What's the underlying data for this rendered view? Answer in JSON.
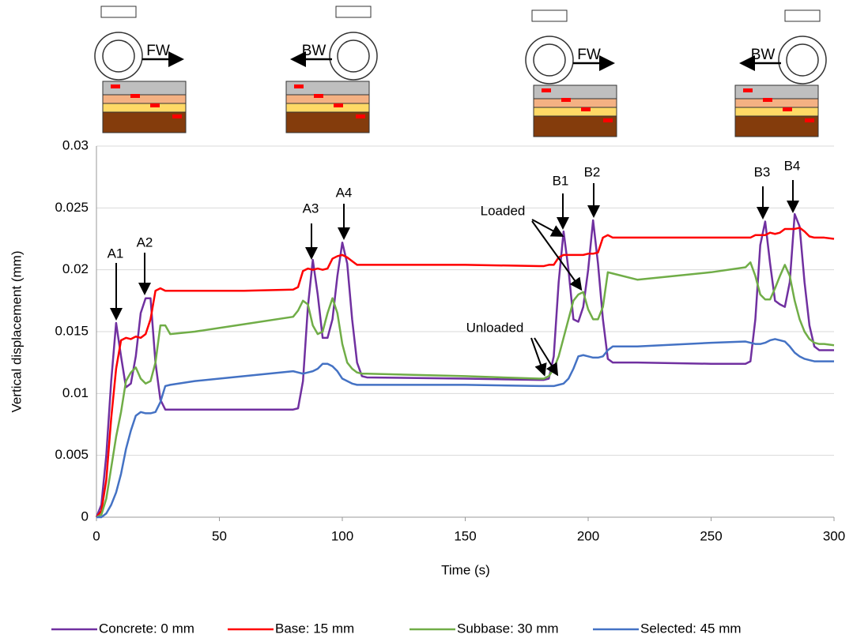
{
  "chart_data": {
    "type": "line",
    "xlabel": "Time (s)",
    "ylabel": "Vertical displacement (mm)",
    "x": [
      0,
      2,
      4,
      6,
      8,
      10,
      12,
      14,
      16,
      18,
      20,
      22,
      24,
      26,
      28,
      30,
      40,
      60,
      80,
      82,
      84,
      86,
      88,
      90,
      92,
      94,
      96,
      98,
      100,
      102,
      104,
      106,
      108,
      110,
      150,
      180,
      182,
      184,
      186,
      188,
      190,
      192,
      194,
      196,
      198,
      200,
      202,
      204,
      206,
      208,
      210,
      220,
      250,
      264,
      266,
      268,
      270,
      272,
      274,
      276,
      278,
      280,
      282,
      284,
      286,
      288,
      290,
      292,
      294,
      296,
      300
    ],
    "series": [
      {
        "name": "Concrete: 0 mm",
        "color": "#7030a0",
        "values": [
          0,
          0.001,
          0.005,
          0.011,
          0.0157,
          0.013,
          0.0105,
          0.0108,
          0.013,
          0.0165,
          0.0177,
          0.0177,
          0.0125,
          0.0095,
          0.0087,
          0.0087,
          0.0087,
          0.0087,
          0.0087,
          0.0088,
          0.011,
          0.017,
          0.0208,
          0.018,
          0.0145,
          0.0145,
          0.016,
          0.0195,
          0.0222,
          0.0205,
          0.016,
          0.0125,
          0.0114,
          0.0113,
          0.0112,
          0.0111,
          0.0111,
          0.0112,
          0.013,
          0.019,
          0.0231,
          0.02,
          0.016,
          0.0158,
          0.017,
          0.02,
          0.024,
          0.0205,
          0.016,
          0.0128,
          0.0125,
          0.0125,
          0.0124,
          0.0124,
          0.0126,
          0.016,
          0.022,
          0.0239,
          0.0205,
          0.0175,
          0.0172,
          0.017,
          0.019,
          0.0245,
          0.0235,
          0.019,
          0.0155,
          0.0138,
          0.0135,
          0.0135,
          0.0135
        ]
      },
      {
        "name": "Base: 15 mm",
        "color": "#ff0000",
        "values": [
          0,
          0.0005,
          0.003,
          0.008,
          0.012,
          0.0143,
          0.0145,
          0.0144,
          0.0146,
          0.0145,
          0.0148,
          0.016,
          0.0183,
          0.0185,
          0.0183,
          0.0183,
          0.0183,
          0.0183,
          0.0184,
          0.0186,
          0.0199,
          0.0201,
          0.02,
          0.0201,
          0.02,
          0.0201,
          0.0209,
          0.0211,
          0.0212,
          0.021,
          0.0207,
          0.0204,
          0.0204,
          0.0204,
          0.0204,
          0.0203,
          0.0203,
          0.0204,
          0.0204,
          0.021,
          0.0212,
          0.0212,
          0.0212,
          0.0212,
          0.0212,
          0.0213,
          0.0213,
          0.0214,
          0.0226,
          0.0228,
          0.0226,
          0.0226,
          0.0226,
          0.0226,
          0.0226,
          0.0228,
          0.0228,
          0.0228,
          0.023,
          0.0229,
          0.023,
          0.0233,
          0.0233,
          0.0233,
          0.0234,
          0.0231,
          0.0227,
          0.0226,
          0.0226,
          0.0226,
          0.0225
        ]
      },
      {
        "name": "Subbase: 30 mm",
        "color": "#70ad47",
        "values": [
          0,
          0.0002,
          0.0015,
          0.004,
          0.0065,
          0.0085,
          0.011,
          0.0117,
          0.0121,
          0.0112,
          0.0108,
          0.011,
          0.0125,
          0.0155,
          0.0155,
          0.0148,
          0.015,
          0.0156,
          0.0162,
          0.0167,
          0.0175,
          0.0172,
          0.0155,
          0.0148,
          0.015,
          0.0165,
          0.0177,
          0.0165,
          0.014,
          0.0125,
          0.012,
          0.0117,
          0.0116,
          0.0116,
          0.0114,
          0.0112,
          0.0112,
          0.0114,
          0.012,
          0.013,
          0.0145,
          0.016,
          0.0175,
          0.018,
          0.0182,
          0.0168,
          0.016,
          0.016,
          0.017,
          0.0198,
          0.0197,
          0.0192,
          0.0198,
          0.0202,
          0.0206,
          0.0195,
          0.018,
          0.0176,
          0.0176,
          0.0185,
          0.0195,
          0.0204,
          0.0195,
          0.0175,
          0.016,
          0.015,
          0.0144,
          0.0141,
          0.014,
          0.014,
          0.0139
        ]
      },
      {
        "name": "Selected: 45 mm",
        "color": "#4472c4",
        "values": [
          0,
          0,
          0.0003,
          0.001,
          0.002,
          0.0035,
          0.0055,
          0.007,
          0.0082,
          0.0085,
          0.0084,
          0.0084,
          0.0085,
          0.0093,
          0.0106,
          0.0107,
          0.011,
          0.0114,
          0.0118,
          0.0117,
          0.0116,
          0.0117,
          0.0118,
          0.012,
          0.0124,
          0.0124,
          0.0122,
          0.0118,
          0.0112,
          0.011,
          0.0108,
          0.0107,
          0.0107,
          0.0107,
          0.0107,
          0.0106,
          0.0106,
          0.0106,
          0.0106,
          0.0107,
          0.0108,
          0.0112,
          0.012,
          0.013,
          0.0131,
          0.013,
          0.0129,
          0.0129,
          0.013,
          0.0135,
          0.0138,
          0.0138,
          0.0141,
          0.0142,
          0.0141,
          0.014,
          0.014,
          0.0141,
          0.0143,
          0.0144,
          0.0143,
          0.0142,
          0.0138,
          0.0133,
          0.013,
          0.0128,
          0.0127,
          0.0126,
          0.0126,
          0.0126,
          0.0126
        ]
      }
    ],
    "xlim": [
      0,
      300
    ],
    "xticks": [
      0,
      50,
      100,
      150,
      200,
      250,
      300
    ],
    "ylim": [
      0,
      0.03
    ],
    "yticks": [
      0,
      0.005,
      0.01,
      0.015,
      0.02,
      0.025,
      0.03
    ],
    "grid": true,
    "legend": "bottom",
    "annotations": [
      "A1",
      "A2",
      "A3",
      "A4",
      "B1",
      "B2",
      "B3",
      "B4",
      "Loaded",
      "Unloaded"
    ],
    "icon_labels": [
      "FW",
      "BW",
      "FW",
      "BW"
    ]
  }
}
